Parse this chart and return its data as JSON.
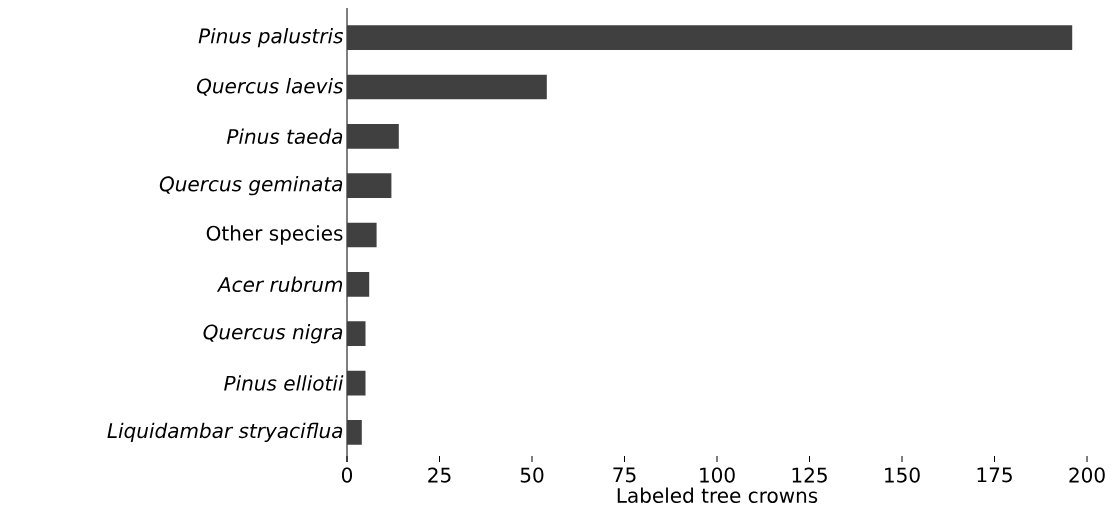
{
  "chart_data": {
    "type": "bar",
    "orientation": "horizontal",
    "xlabel": "Labeled tree crowns",
    "categories": [
      "*Pinus palustris*",
      "*Quercus laevis*",
      "*Pinus taeda*",
      "*Quercus geminata*",
      "Other species",
      "*Acer rubrum*",
      "*Quercus nigra*",
      "*Pinus elliotii*",
      "*Liquidambar stryaciflua*"
    ],
    "values": [
      196,
      54,
      14,
      12,
      8,
      6,
      5,
      5,
      4
    ],
    "color": "#404040",
    "xlim": [
      0,
      200
    ],
    "xticks": [
      0,
      25,
      50,
      75,
      100,
      125,
      150,
      175,
      200
    ]
  }
}
